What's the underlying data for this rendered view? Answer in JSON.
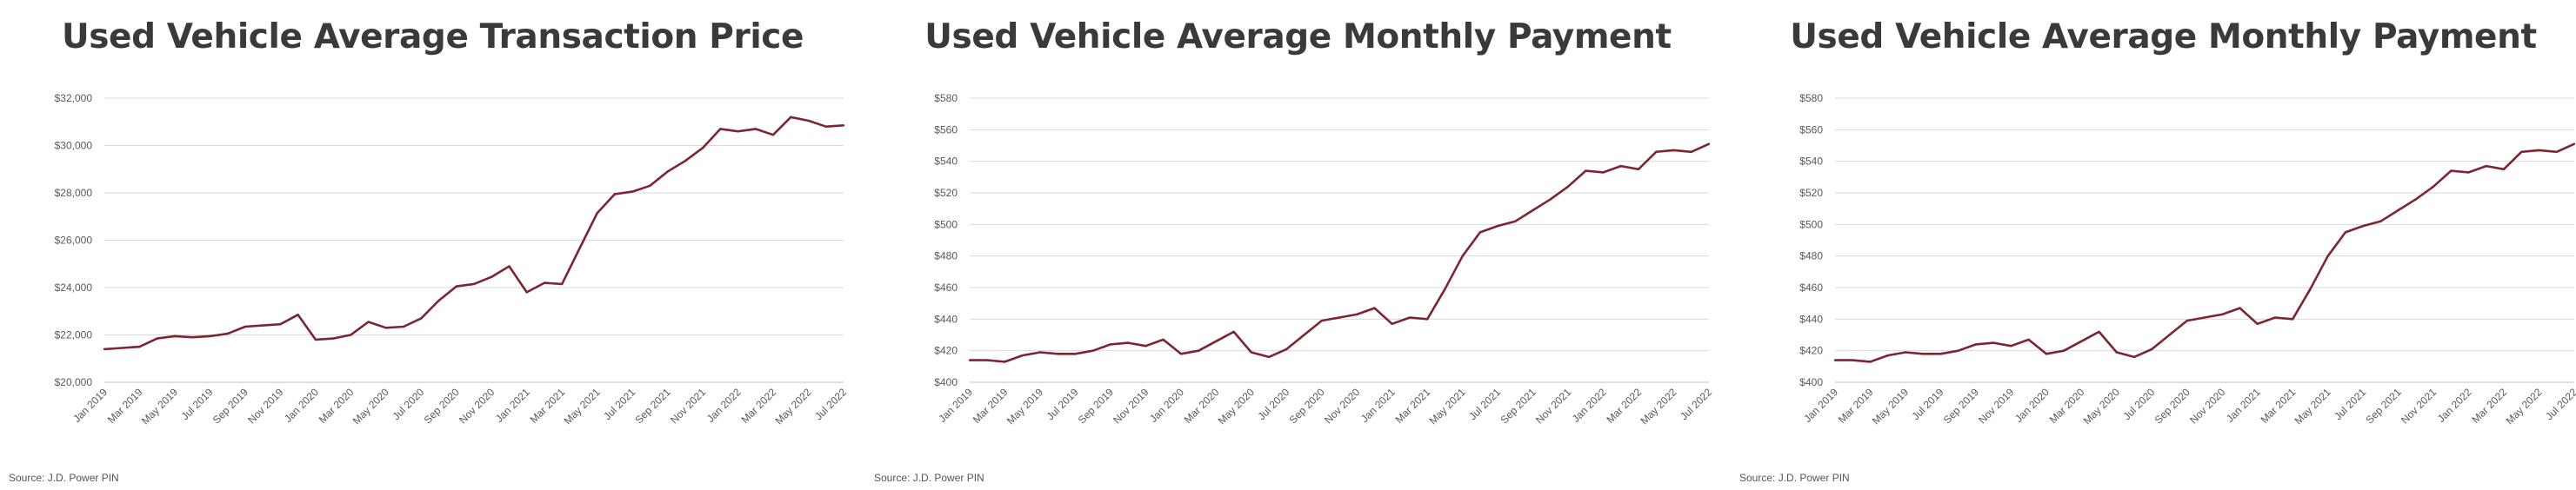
{
  "source_label": "Source: J.D. Power PIN",
  "colors": {
    "line": "#7b2630",
    "grid": "#d9d9d9",
    "text": "#595959",
    "title": "#3a3a3a"
  },
  "chart_data": [
    {
      "type": "line",
      "title": "Used Vehicle Average Transaction Price",
      "xlabel": "",
      "ylabel": "",
      "grid": true,
      "ylim": [
        20000,
        32000
      ],
      "yticks": [
        20000,
        22000,
        24000,
        26000,
        28000,
        30000,
        32000
      ],
      "ytick_labels": [
        "$20,000",
        "$22,000",
        "$24,000",
        "$26,000",
        "$28,000",
        "$30,000",
        "$32,000"
      ],
      "x": [
        "Jan 2019",
        "Feb 2019",
        "Mar 2019",
        "Apr 2019",
        "May 2019",
        "Jun 2019",
        "Jul 2019",
        "Aug 2019",
        "Sep 2019",
        "Oct 2019",
        "Nov 2019",
        "Dec 2019",
        "Jan 2020",
        "Feb 2020",
        "Mar 2020",
        "Apr 2020",
        "May 2020",
        "Jun 2020",
        "Jul 2020",
        "Aug 2020",
        "Sep 2020",
        "Oct 2020",
        "Nov 2020",
        "Dec 2020",
        "Jan 2021",
        "Feb 2021",
        "Mar 2021",
        "Apr 2021",
        "May 2021",
        "Jun 2021",
        "Jul 2021",
        "Aug 2021",
        "Sep 2021",
        "Oct 2021",
        "Nov 2021",
        "Dec 2021",
        "Jan 2022",
        "Feb 2022",
        "Mar 2022",
        "Apr 2022",
        "May 2022",
        "Jun 2022",
        "Jul 2022"
      ],
      "xtick_labels": [
        "Jan 2019",
        "Mar 2019",
        "May 2019",
        "Jul 2019",
        "Sep 2019",
        "Nov 2019",
        "Jan 2020",
        "Mar 2020",
        "May 2020",
        "Jul 2020",
        "Sep 2020",
        "Nov 2020",
        "Jan 2021",
        "Mar 2021",
        "May 2021",
        "Jul 2021",
        "Sep 2021",
        "Nov 2021",
        "Jan 2022",
        "Mar 2022",
        "May 2022",
        "Jul 2022"
      ],
      "series": [
        {
          "values": [
            21400,
            21450,
            21500,
            21850,
            21950,
            21900,
            21950,
            22050,
            22350,
            22400,
            22450,
            22850,
            21800,
            21850,
            22000,
            22550,
            22300,
            22350,
            22700,
            23450,
            24050,
            24150,
            24450,
            24900,
            23800,
            24200,
            24150,
            25650,
            27150,
            27950,
            28050,
            28300,
            28900,
            29350,
            29900,
            30700,
            30600,
            30700,
            30450,
            31200,
            31050,
            30800,
            30850
          ]
        }
      ]
    },
    {
      "type": "line",
      "title": "Used Vehicle Average Monthly Payment",
      "xlabel": "",
      "ylabel": "",
      "grid": true,
      "ylim": [
        400,
        580
      ],
      "yticks": [
        400,
        420,
        440,
        460,
        480,
        500,
        520,
        540,
        560,
        580
      ],
      "ytick_labels": [
        "$400",
        "$420",
        "$440",
        "$460",
        "$480",
        "$500",
        "$520",
        "$540",
        "$560",
        "$580"
      ],
      "x": [
        "Jan 2019",
        "Feb 2019",
        "Mar 2019",
        "Apr 2019",
        "May 2019",
        "Jun 2019",
        "Jul 2019",
        "Aug 2019",
        "Sep 2019",
        "Oct 2019",
        "Nov 2019",
        "Dec 2019",
        "Jan 2020",
        "Feb 2020",
        "Mar 2020",
        "Apr 2020",
        "May 2020",
        "Jun 2020",
        "Jul 2020",
        "Aug 2020",
        "Sep 2020",
        "Oct 2020",
        "Nov 2020",
        "Dec 2020",
        "Jan 2021",
        "Feb 2021",
        "Mar 2021",
        "Apr 2021",
        "May 2021",
        "Jun 2021",
        "Jul 2021",
        "Aug 2021",
        "Sep 2021",
        "Oct 2021",
        "Nov 2021",
        "Dec 2021",
        "Jan 2022",
        "Feb 2022",
        "Mar 2022",
        "Apr 2022",
        "May 2022",
        "Jun 2022",
        "Jul 2022"
      ],
      "xtick_labels": [
        "Jan 2019",
        "Mar 2019",
        "May 2019",
        "Jul 2019",
        "Sep 2019",
        "Nov 2019",
        "Jan 2020",
        "Mar 2020",
        "May 2020",
        "Jul 2020",
        "Sep 2020",
        "Nov 2020",
        "Jan 2021",
        "Mar 2021",
        "May 2021",
        "Jul 2021",
        "Sep 2021",
        "Nov 2021",
        "Jan 2022",
        "Mar 2022",
        "May 2022",
        "Jul 2022"
      ],
      "series": [
        {
          "values": [
            414,
            414,
            413,
            417,
            419,
            418,
            418,
            420,
            424,
            425,
            423,
            427,
            418,
            420,
            426,
            432,
            419,
            416,
            421,
            430,
            439,
            441,
            443,
            447,
            437,
            441,
            440,
            459,
            480,
            495,
            499,
            502,
            509,
            516,
            524,
            534,
            533,
            537,
            535,
            546,
            547,
            546,
            551
          ]
        }
      ]
    },
    {
      "type": "line",
      "title": "Used Vehicle Average Monthly Payment",
      "xlabel": "",
      "ylabel": "",
      "grid": true,
      "ylim": [
        400,
        580
      ],
      "yticks": [
        400,
        420,
        440,
        460,
        480,
        500,
        520,
        540,
        560,
        580
      ],
      "ytick_labels": [
        "$400",
        "$420",
        "$440",
        "$460",
        "$480",
        "$500",
        "$520",
        "$540",
        "$560",
        "$580"
      ],
      "x": [
        "Jan 2019",
        "Feb 2019",
        "Mar 2019",
        "Apr 2019",
        "May 2019",
        "Jun 2019",
        "Jul 2019",
        "Aug 2019",
        "Sep 2019",
        "Oct 2019",
        "Nov 2019",
        "Dec 2019",
        "Jan 2020",
        "Feb 2020",
        "Mar 2020",
        "Apr 2020",
        "May 2020",
        "Jun 2020",
        "Jul 2020",
        "Aug 2020",
        "Sep 2020",
        "Oct 2020",
        "Nov 2020",
        "Dec 2020",
        "Jan 2021",
        "Feb 2021",
        "Mar 2021",
        "Apr 2021",
        "May 2021",
        "Jun 2021",
        "Jul 2021",
        "Aug 2021",
        "Sep 2021",
        "Oct 2021",
        "Nov 2021",
        "Dec 2021",
        "Jan 2022",
        "Feb 2022",
        "Mar 2022",
        "Apr 2022",
        "May 2022",
        "Jun 2022",
        "Jul 2022"
      ],
      "xtick_labels": [
        "Jan 2019",
        "Mar 2019",
        "May 2019",
        "Jul 2019",
        "Sep 2019",
        "Nov 2019",
        "Jan 2020",
        "Mar 2020",
        "May 2020",
        "Jul 2020",
        "Sep 2020",
        "Nov 2020",
        "Jan 2021",
        "Mar 2021",
        "May 2021",
        "Jul 2021",
        "Sep 2021",
        "Nov 2021",
        "Jan 2022",
        "Mar 2022",
        "May 2022",
        "Jul 2022"
      ],
      "series": [
        {
          "values": [
            414,
            414,
            413,
            417,
            419,
            418,
            418,
            420,
            424,
            425,
            423,
            427,
            418,
            420,
            426,
            432,
            419,
            416,
            421,
            430,
            439,
            441,
            443,
            447,
            437,
            441,
            440,
            459,
            480,
            495,
            499,
            502,
            509,
            516,
            524,
            534,
            533,
            537,
            535,
            546,
            547,
            546,
            551
          ]
        }
      ]
    }
  ]
}
